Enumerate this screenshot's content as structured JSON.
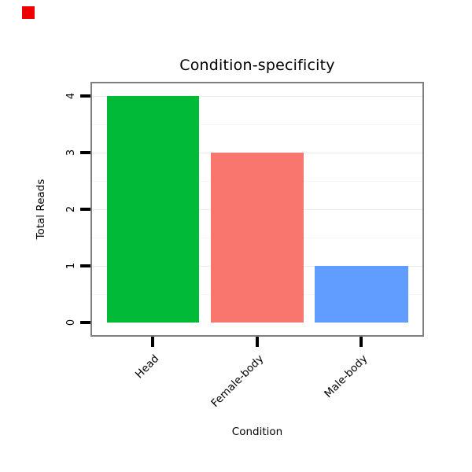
{
  "marker": {
    "color": "#ee0000"
  },
  "chart_data": {
    "type": "bar",
    "title": "Condition-specificity",
    "xlabel": "Condition",
    "ylabel": "Total Reads",
    "categories": [
      "Head",
      "Female-body",
      "Male-body"
    ],
    "values": [
      4,
      3,
      1
    ],
    "colors": [
      "#00ba38",
      "#f8766d",
      "#619cff"
    ],
    "ylim": [
      0,
      4
    ],
    "yticks": [
      0,
      1,
      2,
      3,
      4
    ],
    "grid": true,
    "legend": "none",
    "border_color": "#7f7f7f"
  }
}
